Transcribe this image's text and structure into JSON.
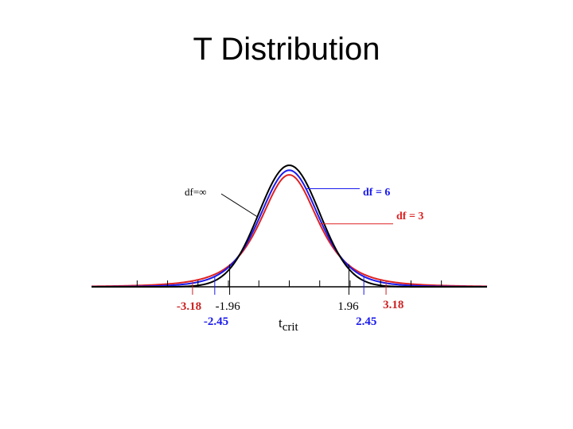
{
  "slide": {
    "title": "T Distribution"
  },
  "chart_data": {
    "type": "line",
    "title": "",
    "xlabel": "t",
    "xlabel_sub": "crit",
    "xlim": [
      -6.5,
      6.5
    ],
    "ylim": [
      0,
      0.42
    ],
    "grid": false,
    "legend": "inline labels with leader lines",
    "series": [
      {
        "name": "df=∞",
        "df": "inf",
        "color": "#000000"
      },
      {
        "name": "df = 6",
        "df": 6,
        "color": "#1a1aee"
      },
      {
        "name": "df = 3",
        "df": 3,
        "color": "#dd2222"
      }
    ],
    "critical_values": [
      {
        "value": -3.18,
        "label": "-3.18",
        "color": "#cc2222"
      },
      {
        "value": -2.45,
        "label": "-2.45",
        "color": "#1a1aee"
      },
      {
        "value": -1.96,
        "label": "-1.96",
        "color": "#000000"
      },
      {
        "value": 1.96,
        "label": "1.96",
        "color": "#000000"
      },
      {
        "value": 2.45,
        "label": "2.45",
        "color": "#1a1aee"
      },
      {
        "value": 3.18,
        "label": "3.18",
        "color": "#cc2222"
      }
    ]
  }
}
